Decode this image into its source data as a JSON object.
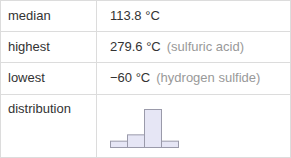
{
  "table": {
    "rows": [
      {
        "label": "median",
        "value": "113.8 °C"
      },
      {
        "label": "highest",
        "value": "279.6 °C",
        "note": "(sulfuric acid)"
      },
      {
        "label": "lowest",
        "value": "−60 °C",
        "note": "(hydrogen sulfide)"
      },
      {
        "label": "distribution"
      }
    ]
  },
  "chart_data": {
    "type": "histogram",
    "bins": [
      -100,
      0,
      100,
      200,
      300
    ],
    "counts": [
      1,
      2,
      6,
      1
    ],
    "xlim": [
      -100,
      300
    ],
    "ylim": [
      0,
      6
    ],
    "color": "#e6e6f5",
    "tick_labels": false,
    "grid": false
  }
}
